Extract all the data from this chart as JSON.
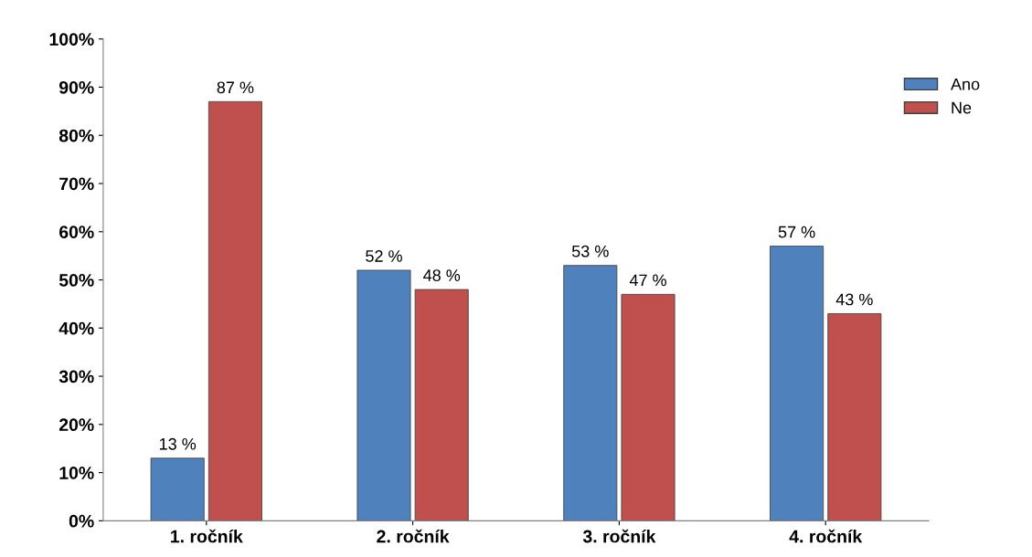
{
  "chart_data": {
    "type": "bar",
    "categories": [
      "1. ročník",
      "2. ročník",
      "3. ročník",
      "4. ročník"
    ],
    "series": [
      {
        "name": "Ano",
        "color": "#4f81bd",
        "values": [
          13,
          52,
          53,
          57
        ],
        "value_labels": [
          "13 %",
          "52 %",
          "53 %",
          "57 %"
        ]
      },
      {
        "name": "Ne",
        "color": "#c0504d",
        "values": [
          87,
          48,
          47,
          43
        ],
        "value_labels": [
          "87 %",
          "48 %",
          "47 %",
          "43 %"
        ]
      }
    ],
    "ylim": [
      0,
      100
    ],
    "yticks": [
      {
        "value": 0,
        "label": "0%"
      },
      {
        "value": 10,
        "label": "10%"
      },
      {
        "value": 20,
        "label": "20%"
      },
      {
        "value": 30,
        "label": "30%"
      },
      {
        "value": 40,
        "label": "40%"
      },
      {
        "value": 50,
        "label": "50%"
      },
      {
        "value": 60,
        "label": "60%"
      },
      {
        "value": 70,
        "label": "70%"
      },
      {
        "value": 80,
        "label": "80%"
      },
      {
        "value": 90,
        "label": "90%"
      },
      {
        "value": 100,
        "label": "100%"
      }
    ],
    "grid": false,
    "legend": "top right"
  }
}
